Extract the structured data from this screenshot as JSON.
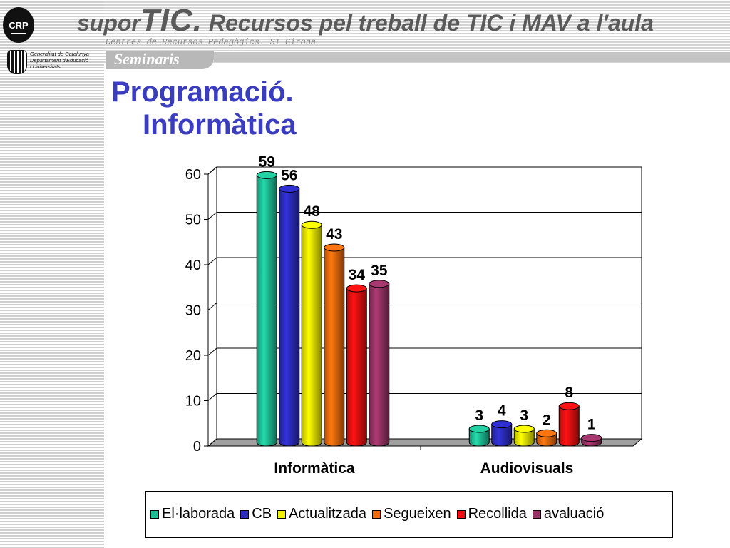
{
  "header": {
    "logo_text": "CRP",
    "gencat": [
      "Generalitat de Catalunya",
      "Departament d'Educació",
      "i Universitats"
    ],
    "title_prefix": "supor",
    "title_brand": "TIC.",
    "title_rest": " Recursos pel treball de TIC i MAV a l'aula",
    "subtitle": "Centres de Recursos Pedagògics. ST Girona",
    "section_tab": "Seminaris"
  },
  "page": {
    "title_line1": "Programació.",
    "title_line2": "Informàtica"
  },
  "chart_data": {
    "type": "bar",
    "categories": [
      "Informàtica",
      "Audiovisuals"
    ],
    "series": [
      {
        "name": "El·laborada",
        "values": [
          59,
          3
        ],
        "color": "#1fbf96"
      },
      {
        "name": "CB",
        "values": [
          56,
          4
        ],
        "color": "#2c2cbf"
      },
      {
        "name": "Actualitzada",
        "values": [
          48,
          3
        ],
        "color": "#f2f200"
      },
      {
        "name": "Segueixen",
        "values": [
          43,
          2
        ],
        "color": "#f26a0c"
      },
      {
        "name": "Recollida",
        "values": [
          34,
          8
        ],
        "color": "#ee1010"
      },
      {
        "name": "avaluació",
        "values": [
          35,
          1
        ],
        "color": "#993366"
      }
    ],
    "yticks": [
      "0",
      "10",
      "20",
      "30",
      "40",
      "50",
      "60"
    ],
    "ylim": [
      0,
      60
    ],
    "grid": true,
    "legend_position": "bottom",
    "data_labels": true,
    "style": "3d-cylinder"
  }
}
